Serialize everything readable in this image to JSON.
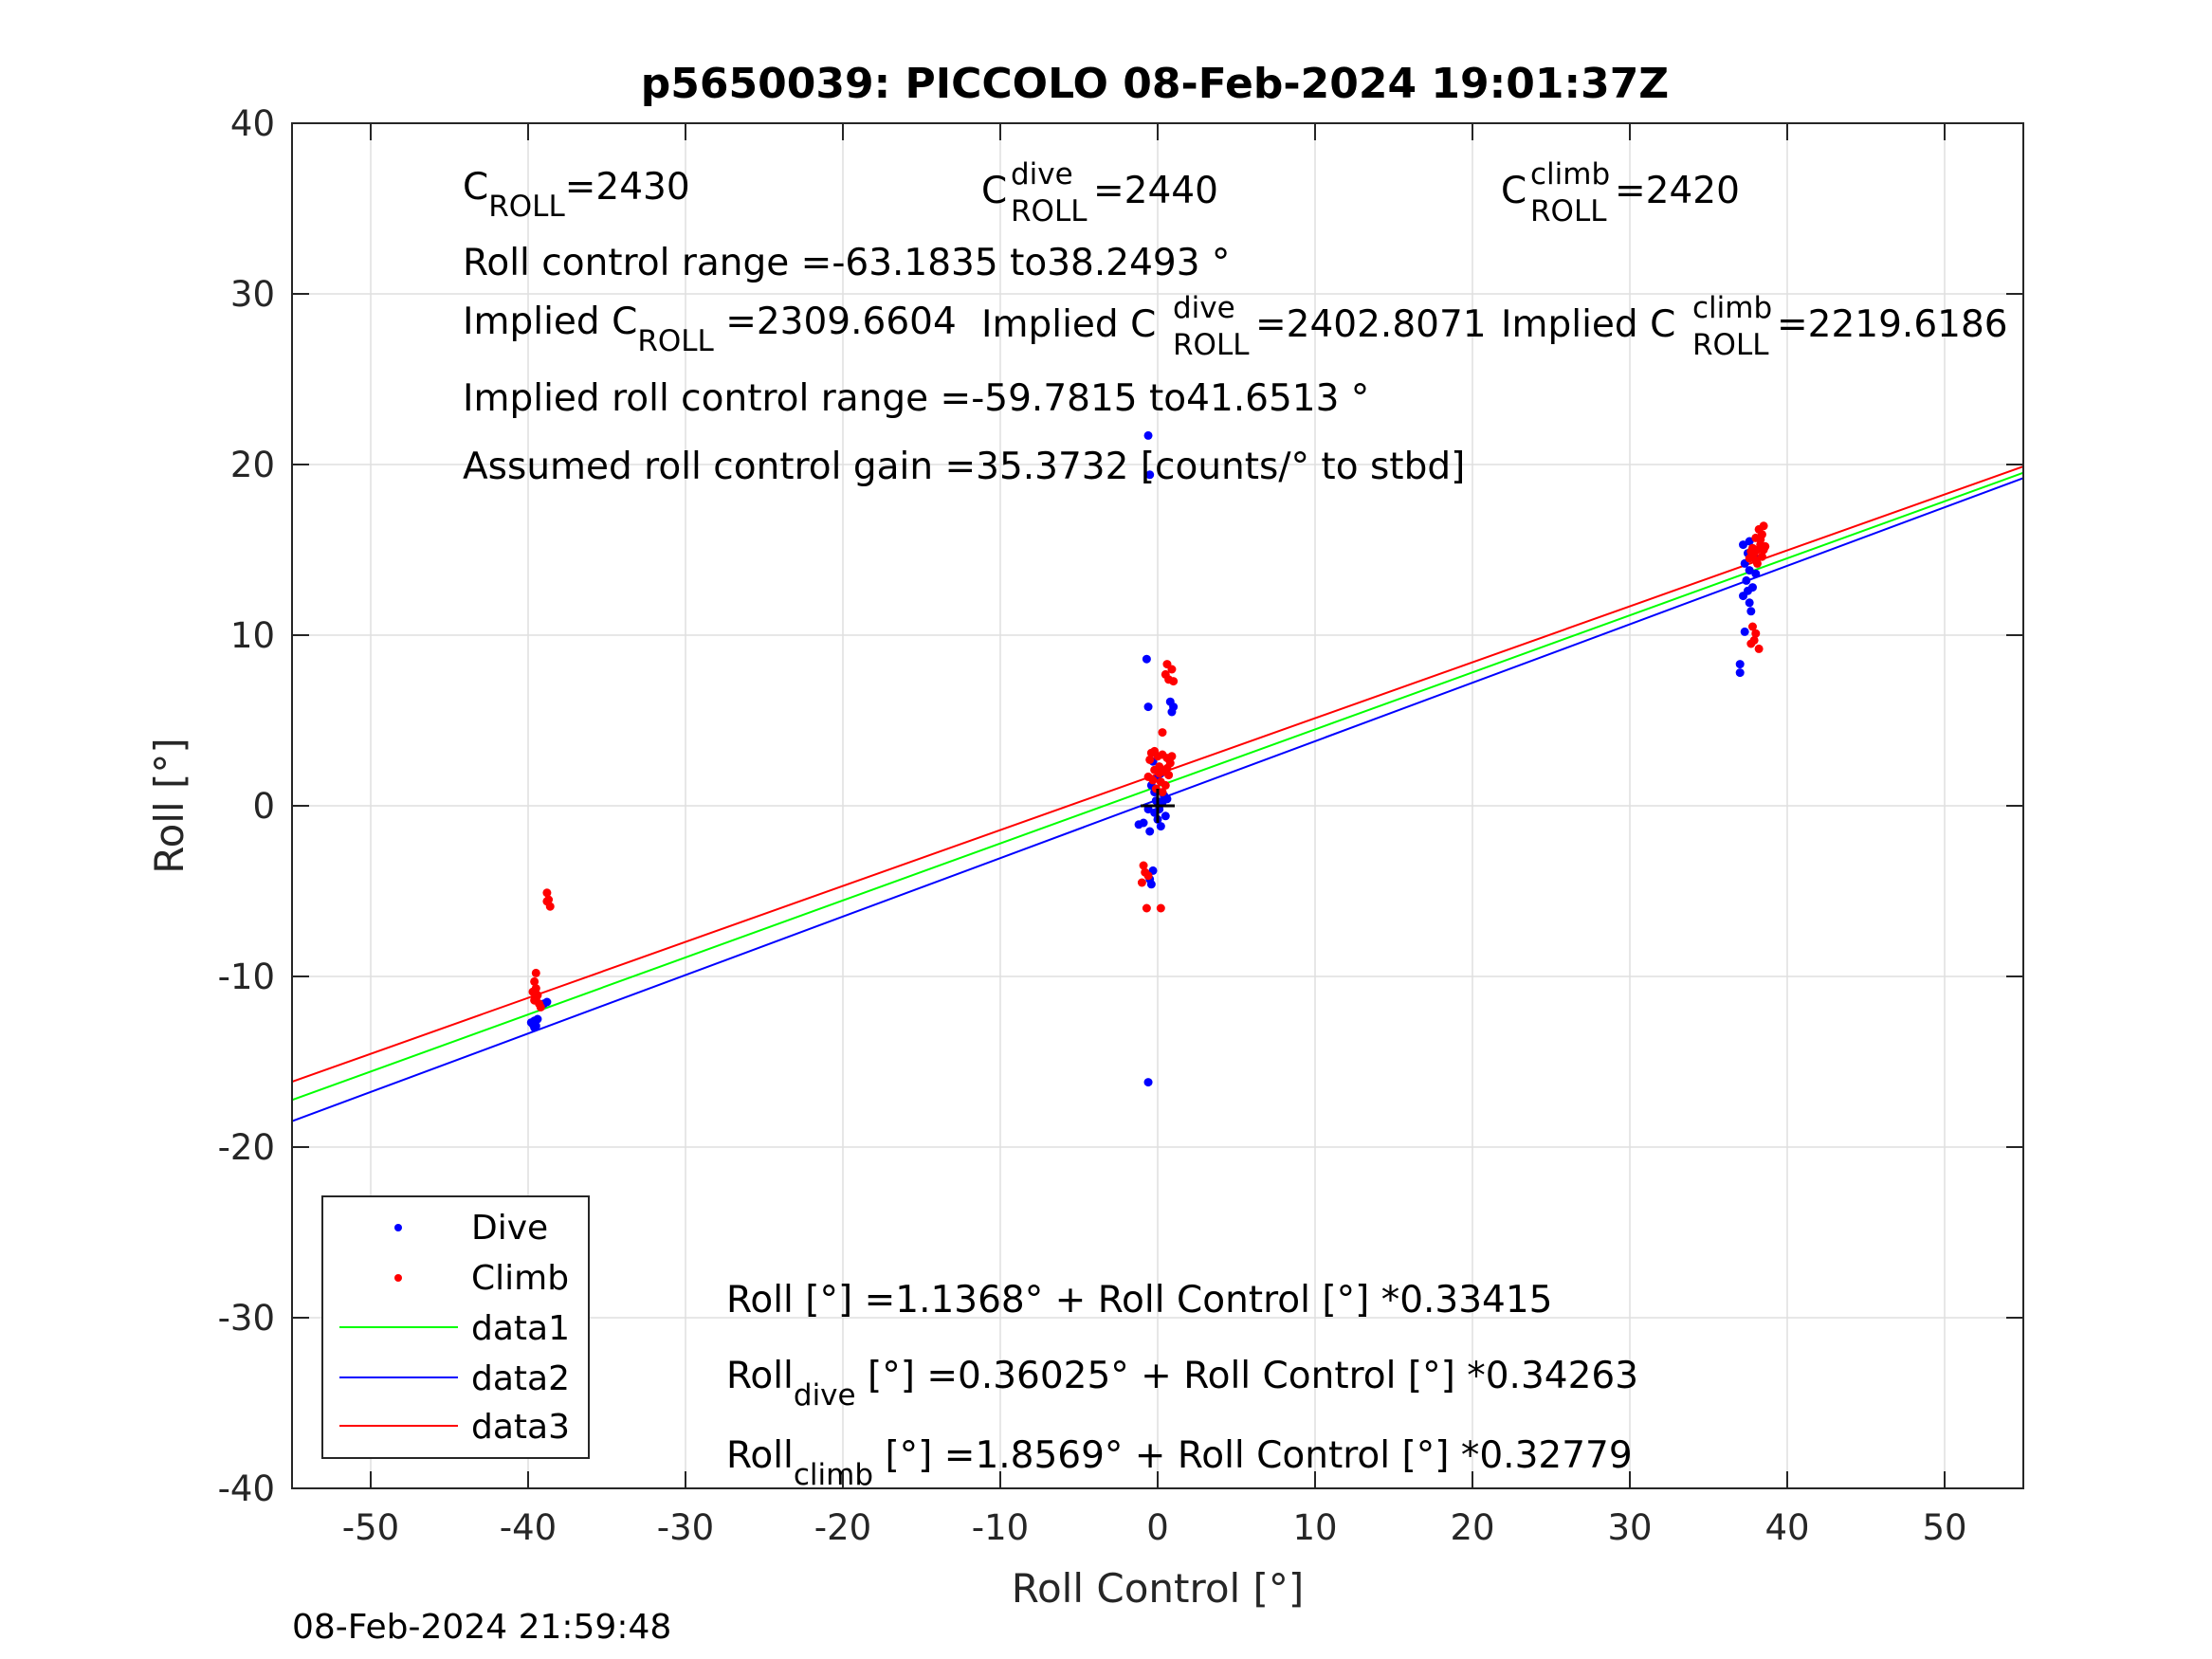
{
  "chart_data": {
    "type": "scatter",
    "title": "p5650039: PICCOLO 08-Feb-2024 19:01:37Z",
    "xlabel": "Roll Control [°]",
    "ylabel": "Roll [°]",
    "xlim": [
      -55,
      55
    ],
    "ylim": [
      -40,
      40
    ],
    "xticks": [
      -50,
      -40,
      -30,
      -20,
      -10,
      0,
      10,
      20,
      30,
      40,
      50
    ],
    "yticks": [
      -40,
      -30,
      -20,
      -10,
      0,
      10,
      20,
      30,
      40
    ],
    "grid": true,
    "legend_position": "bottom-left",
    "timestamp": "08-Feb-2024 21:59:48",
    "annotations": {
      "c_roll": {
        "base": "C",
        "sub": "ROLL",
        "value": "=2430"
      },
      "c_roll_dive": {
        "base": "C",
        "sup": "dive",
        "sub": "ROLL",
        "value": " =2440"
      },
      "c_roll_climb": {
        "base": "C",
        "sup": "climb",
        "sub": "ROLL",
        "value": " =2420"
      },
      "roll_range": "Roll control range =-63.1835 to38.2493 °",
      "implied_c_roll": {
        "prefix": "Implied C",
        "sub": "ROLL",
        "value": " =2309.6604"
      },
      "implied_c_roll_dive": {
        "prefix": "Implied C",
        "sup": "dive",
        "sub": "ROLL",
        "value": " =2402.8071"
      },
      "implied_c_roll_climb": {
        "prefix": "Implied C",
        "sup": "climb",
        "sub": "ROLL",
        "value": " =2219.6186"
      },
      "implied_range": "Implied roll control range =-59.7815 to41.6513 °",
      "gain": "Assumed roll control gain =35.3732 [counts/° to stbd]",
      "fit_all": "Roll [°] =1.1368° + Roll Control [°] *0.33415",
      "fit_dive": {
        "base": "Roll",
        "sub": "dive",
        "rest": " [°] =0.36025° + Roll Control [°] *0.34263"
      },
      "fit_climb": {
        "base": "Roll",
        "sub": "climb",
        "rest": " [°] =1.8569° + Roll Control [°] *0.32779"
      }
    },
    "legend": [
      "Dive",
      "Climb",
      "data1",
      "data2",
      "data3"
    ],
    "colors": {
      "dive": "#0000ff",
      "climb": "#ff0000",
      "data1": "#00ff00",
      "data2": "#0000ff",
      "data3": "#ff0000"
    },
    "lines": [
      {
        "name": "data1",
        "intercept": 1.1368,
        "slope": 0.33415
      },
      {
        "name": "data2",
        "intercept": 0.36025,
        "slope": 0.34263
      },
      {
        "name": "data3",
        "intercept": 1.8569,
        "slope": 0.32779
      }
    ],
    "series": [
      {
        "name": "Dive",
        "points": [
          [
            -39.6,
            -12.6
          ],
          [
            -39.7,
            -12.8
          ],
          [
            -39.5,
            -12.9
          ],
          [
            -39.6,
            -13.0
          ],
          [
            -39.8,
            -12.7
          ],
          [
            -39.4,
            -12.5
          ],
          [
            -39.0,
            -11.6
          ],
          [
            -38.8,
            -11.5
          ],
          [
            -0.6,
            21.7
          ],
          [
            -0.5,
            19.4
          ],
          [
            -0.7,
            8.6
          ],
          [
            -0.6,
            5.8
          ],
          [
            0.8,
            6.1
          ],
          [
            1.0,
            5.8
          ],
          [
            0.9,
            5.5
          ],
          [
            -1.2,
            -1.1
          ],
          [
            -0.9,
            -1.0
          ],
          [
            -0.5,
            -1.5
          ],
          [
            -0.2,
            -0.4
          ],
          [
            0.1,
            -0.2
          ],
          [
            0.2,
            -1.2
          ],
          [
            0.0,
            -0.8
          ],
          [
            -0.1,
            0.3
          ],
          [
            0.3,
            0.2
          ],
          [
            -0.4,
            1.2
          ],
          [
            -0.2,
            0.8
          ],
          [
            0.0,
            1.6
          ],
          [
            0.2,
            1.9
          ],
          [
            0.1,
            2.2
          ],
          [
            -0.3,
            2.6
          ],
          [
            0.4,
            0.6
          ],
          [
            0.6,
            0.4
          ],
          [
            -0.6,
            -0.2
          ],
          [
            0.5,
            -0.6
          ],
          [
            -0.5,
            -4.3
          ],
          [
            -0.4,
            -4.6
          ],
          [
            -0.3,
            -3.8
          ],
          [
            -0.6,
            -16.2
          ],
          [
            37.2,
            15.3
          ],
          [
            37.5,
            14.8
          ],
          [
            37.6,
            15.5
          ],
          [
            37.3,
            14.2
          ],
          [
            37.6,
            13.8
          ],
          [
            37.4,
            13.2
          ],
          [
            37.8,
            12.8
          ],
          [
            37.2,
            12.3
          ],
          [
            37.6,
            11.9
          ],
          [
            37.7,
            11.4
          ],
          [
            37.3,
            10.2
          ],
          [
            37.0,
            8.3
          ],
          [
            37.0,
            7.8
          ],
          [
            37.9,
            14.6
          ],
          [
            38.0,
            13.6
          ],
          [
            37.5,
            12.6
          ]
        ]
      },
      {
        "name": "Climb",
        "points": [
          [
            -38.8,
            -5.1
          ],
          [
            -38.7,
            -5.5
          ],
          [
            -38.6,
            -5.9
          ],
          [
            -38.8,
            -5.6
          ],
          [
            -39.5,
            -9.8
          ],
          [
            -39.6,
            -10.3
          ],
          [
            -39.5,
            -10.7
          ],
          [
            -39.7,
            -10.9
          ],
          [
            -39.4,
            -11.1
          ],
          [
            -39.5,
            -11.3
          ],
          [
            -39.3,
            -11.6
          ],
          [
            -39.6,
            -11.4
          ],
          [
            -39.2,
            -11.8
          ],
          [
            0.6,
            8.3
          ],
          [
            0.9,
            8.0
          ],
          [
            0.5,
            7.7
          ],
          [
            0.7,
            7.4
          ],
          [
            1.0,
            7.3
          ],
          [
            0.3,
            4.3
          ],
          [
            -0.4,
            3.1
          ],
          [
            0.0,
            2.9
          ],
          [
            0.3,
            3.0
          ],
          [
            0.6,
            2.8
          ],
          [
            0.8,
            2.5
          ],
          [
            -0.5,
            2.7
          ],
          [
            0.1,
            2.3
          ],
          [
            -0.2,
            2.1
          ],
          [
            0.4,
            2.0
          ],
          [
            0.7,
            1.8
          ],
          [
            -0.6,
            1.7
          ],
          [
            -0.3,
            1.5
          ],
          [
            0.2,
            1.4
          ],
          [
            0.5,
            1.2
          ],
          [
            -0.1,
            1.0
          ],
          [
            0.3,
            0.8
          ],
          [
            0.9,
            2.9
          ],
          [
            -0.2,
            3.2
          ],
          [
            0.1,
            1.9
          ],
          [
            0.6,
            2.2
          ],
          [
            -0.9,
            -3.5
          ],
          [
            -0.8,
            -3.9
          ],
          [
            -1.0,
            -4.5
          ],
          [
            -0.6,
            -4.1
          ],
          [
            -0.7,
            -6.0
          ],
          [
            0.2,
            -6.0
          ],
          [
            37.8,
            10.5
          ],
          [
            38.0,
            10.1
          ],
          [
            37.9,
            9.7
          ],
          [
            38.2,
            9.2
          ],
          [
            37.7,
            9.5
          ],
          [
            37.6,
            14.5
          ],
          [
            37.9,
            14.8
          ],
          [
            38.1,
            15.0
          ],
          [
            38.3,
            15.3
          ],
          [
            38.0,
            15.7
          ],
          [
            38.4,
            15.9
          ],
          [
            38.2,
            16.2
          ],
          [
            38.5,
            16.4
          ],
          [
            37.8,
            15.1
          ],
          [
            38.1,
            14.2
          ],
          [
            38.4,
            14.6
          ],
          [
            38.6,
            15.2
          ],
          [
            38.3,
            15.6
          ],
          [
            38.5,
            15.0
          ],
          [
            37.7,
            14.9
          ],
          [
            38.0,
            14.4
          ]
        ]
      }
    ]
  }
}
